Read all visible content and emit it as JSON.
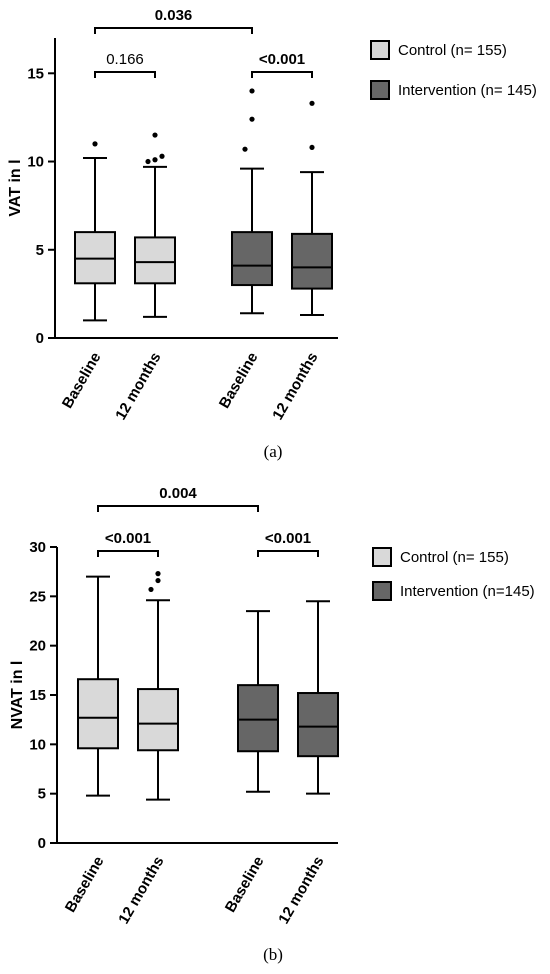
{
  "chart_data": [
    {
      "type": "box",
      "ylabel": "VAT in l",
      "ylim": [
        0,
        17
      ],
      "yticks": [
        0,
        5,
        10,
        15
      ],
      "tick_labels": [
        "0",
        "5",
        "10",
        "15"
      ],
      "categories": [
        "Baseline",
        "12 months",
        "Baseline",
        "12 months"
      ],
      "series": [
        {
          "name": "Control (n= 155)",
          "color": "#d9d9d9",
          "boxes": [
            {
              "min": 1.0,
              "q1": 3.1,
              "median": 4.5,
              "q3": 6.0,
              "max": 10.2,
              "outliers": [
                11.0
              ]
            },
            {
              "min": 1.2,
              "q1": 3.1,
              "median": 4.3,
              "q3": 5.7,
              "max": 9.7,
              "outliers": [
                10.0,
                10.1,
                10.3,
                11.5
              ]
            }
          ]
        },
        {
          "name": "Intervention (n= 145)",
          "color": "#666666",
          "boxes": [
            {
              "min": 1.4,
              "q1": 3.0,
              "median": 4.1,
              "q3": 6.0,
              "max": 9.6,
              "outliers": [
                10.7,
                12.4,
                14.0
              ]
            },
            {
              "min": 1.3,
              "q1": 2.8,
              "median": 4.0,
              "q3": 5.9,
              "max": 9.4,
              "outliers": [
                10.8,
                13.3
              ]
            }
          ]
        }
      ],
      "annotations": [
        {
          "text": "0.166",
          "bold": false,
          "from": 0,
          "to": 1,
          "level": 1
        },
        {
          "text": "<0.001",
          "bold": true,
          "from": 2,
          "to": 3,
          "level": 1
        },
        {
          "text": "0.036",
          "bold": true,
          "from": 0,
          "to": 2,
          "level": 2
        }
      ],
      "legend": [
        "Control (n= 155)",
        "Intervention (n= 145)"
      ],
      "caption": "(a)"
    },
    {
      "type": "box",
      "ylabel": "NVAT in l",
      "ylim": [
        0,
        30
      ],
      "yticks": [
        0,
        5,
        10,
        15,
        20,
        25,
        30
      ],
      "tick_labels": [
        "0",
        "5",
        "10",
        "15",
        "20",
        "25",
        "30"
      ],
      "categories": [
        "Baseline",
        "12 months",
        "Baseline",
        "12 months"
      ],
      "series": [
        {
          "name": "Control (n= 155)",
          "color": "#d9d9d9",
          "boxes": [
            {
              "min": 4.8,
              "q1": 9.6,
              "median": 12.7,
              "q3": 16.6,
              "max": 27.0,
              "outliers": []
            },
            {
              "min": 4.4,
              "q1": 9.4,
              "median": 12.1,
              "q3": 15.6,
              "max": 24.6,
              "outliers": [
                25.7,
                26.6,
                27.3
              ]
            }
          ]
        },
        {
          "name": "Intervention (n=145)",
          "color": "#666666",
          "boxes": [
            {
              "min": 5.2,
              "q1": 9.3,
              "median": 12.5,
              "q3": 16.0,
              "max": 23.5,
              "outliers": []
            },
            {
              "min": 5.0,
              "q1": 8.8,
              "median": 11.8,
              "q3": 15.2,
              "max": 24.5,
              "outliers": []
            }
          ]
        }
      ],
      "annotations": [
        {
          "text": "<0.001",
          "bold": true,
          "from": 0,
          "to": 1,
          "level": 1
        },
        {
          "text": "<0.001",
          "bold": true,
          "from": 2,
          "to": 3,
          "level": 1
        },
        {
          "text": "0.004",
          "bold": true,
          "from": 0,
          "to": 2,
          "level": 2
        }
      ],
      "legend": [
        "Control (n= 155)",
        "Intervention (n=145)"
      ],
      "caption": "(b)"
    }
  ]
}
